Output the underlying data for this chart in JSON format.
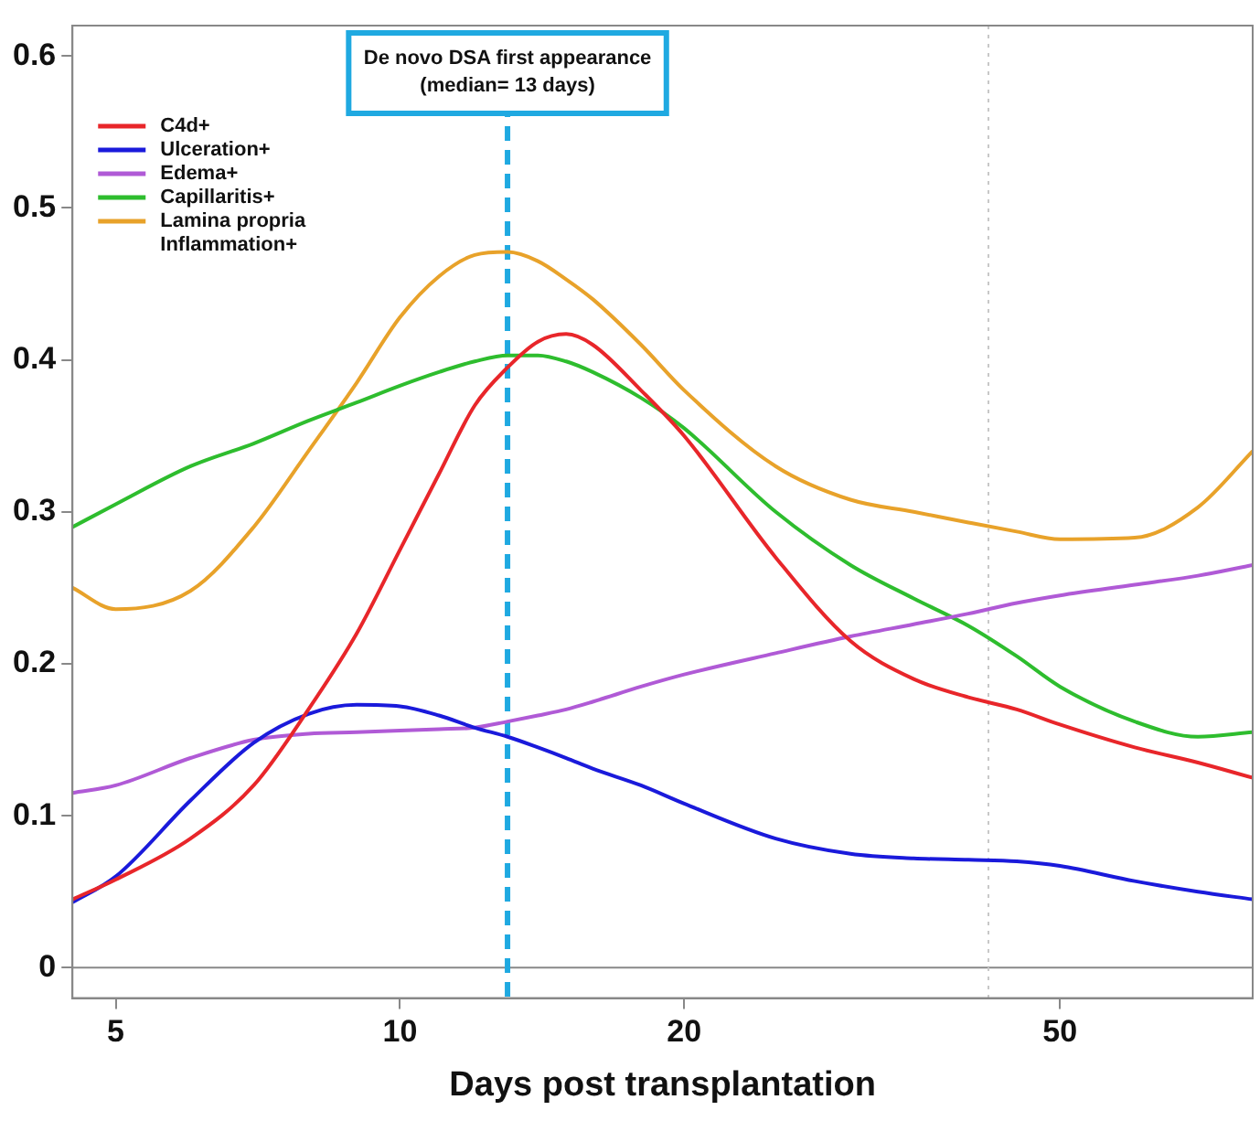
{
  "chart_data": {
    "type": "line",
    "xlabel": "Days post transplantation",
    "log": "x",
    "grid": false,
    "legend": "top left",
    "marker": "none",
    "line_style": "solid",
    "x": [
      4.5,
      5,
      6,
      7,
      8,
      9,
      10,
      11,
      12,
      13,
      14,
      15,
      16,
      18,
      20,
      25,
      30,
      35,
      40,
      45,
      50,
      60,
      70,
      80
    ],
    "xlim": [
      4.5,
      80
    ],
    "xticks": [
      5,
      10,
      20,
      50
    ],
    "ylim": [
      -0.02,
      0.62
    ],
    "yticks": [
      0,
      0.1,
      0.2,
      0.3,
      0.4,
      0.5,
      0.6
    ],
    "series": [
      {
        "name": "C4d+",
        "color": "#e8262a",
        "values": [
          0.045,
          0.058,
          0.085,
          0.12,
          0.17,
          0.22,
          0.275,
          0.325,
          0.37,
          0.395,
          0.412,
          0.417,
          0.41,
          0.38,
          0.35,
          0.27,
          0.215,
          0.19,
          0.178,
          0.17,
          0.16,
          0.145,
          0.135,
          0.125
        ]
      },
      {
        "name": "Ulceration+",
        "color": "#1a1adb",
        "values": [
          0.043,
          0.06,
          0.11,
          0.148,
          0.167,
          0.173,
          0.172,
          0.166,
          0.158,
          0.152,
          0.145,
          0.138,
          0.131,
          0.12,
          0.108,
          0.085,
          0.075,
          0.072,
          0.071,
          0.07,
          0.067,
          0.057,
          0.05,
          0.045
        ]
      },
      {
        "name": "Edema+",
        "color": "#b05ad6",
        "values": [
          0.115,
          0.12,
          0.138,
          0.15,
          0.154,
          0.155,
          0.156,
          0.157,
          0.158,
          0.162,
          0.166,
          0.17,
          0.175,
          0.185,
          0.193,
          0.207,
          0.218,
          0.226,
          0.233,
          0.24,
          0.245,
          0.252,
          0.258,
          0.265
        ]
      },
      {
        "name": "Capillaritis+",
        "color": "#2ebd2e",
        "values": [
          0.29,
          0.305,
          0.33,
          0.345,
          0.36,
          0.372,
          0.383,
          0.392,
          0.399,
          0.403,
          0.403,
          0.399,
          0.392,
          0.375,
          0.355,
          0.3,
          0.265,
          0.243,
          0.225,
          0.205,
          0.185,
          0.162,
          0.152,
          0.155
        ]
      },
      {
        "name": "Lamina propria Inflammation+",
        "color": "#e8a22a",
        "values": [
          0.25,
          0.236,
          0.248,
          0.29,
          0.34,
          0.385,
          0.428,
          0.455,
          0.469,
          0.471,
          0.465,
          0.453,
          0.44,
          0.41,
          0.38,
          0.33,
          0.308,
          0.3,
          0.293,
          0.287,
          0.282,
          0.283,
          0.303,
          0.34
        ]
      }
    ],
    "ref_lines": [
      {
        "axis": "y",
        "value": 0,
        "color": "#888888",
        "line_style": "solid"
      },
      {
        "axis": "x",
        "value": 13,
        "label": "De novo DSA first appearance (median= 13 days)",
        "color": "#1fa9e1",
        "line_style": "dashed"
      },
      {
        "axis": "x",
        "value": 42,
        "color": "#c8c8c8",
        "line_style": "dotted"
      }
    ]
  }
}
